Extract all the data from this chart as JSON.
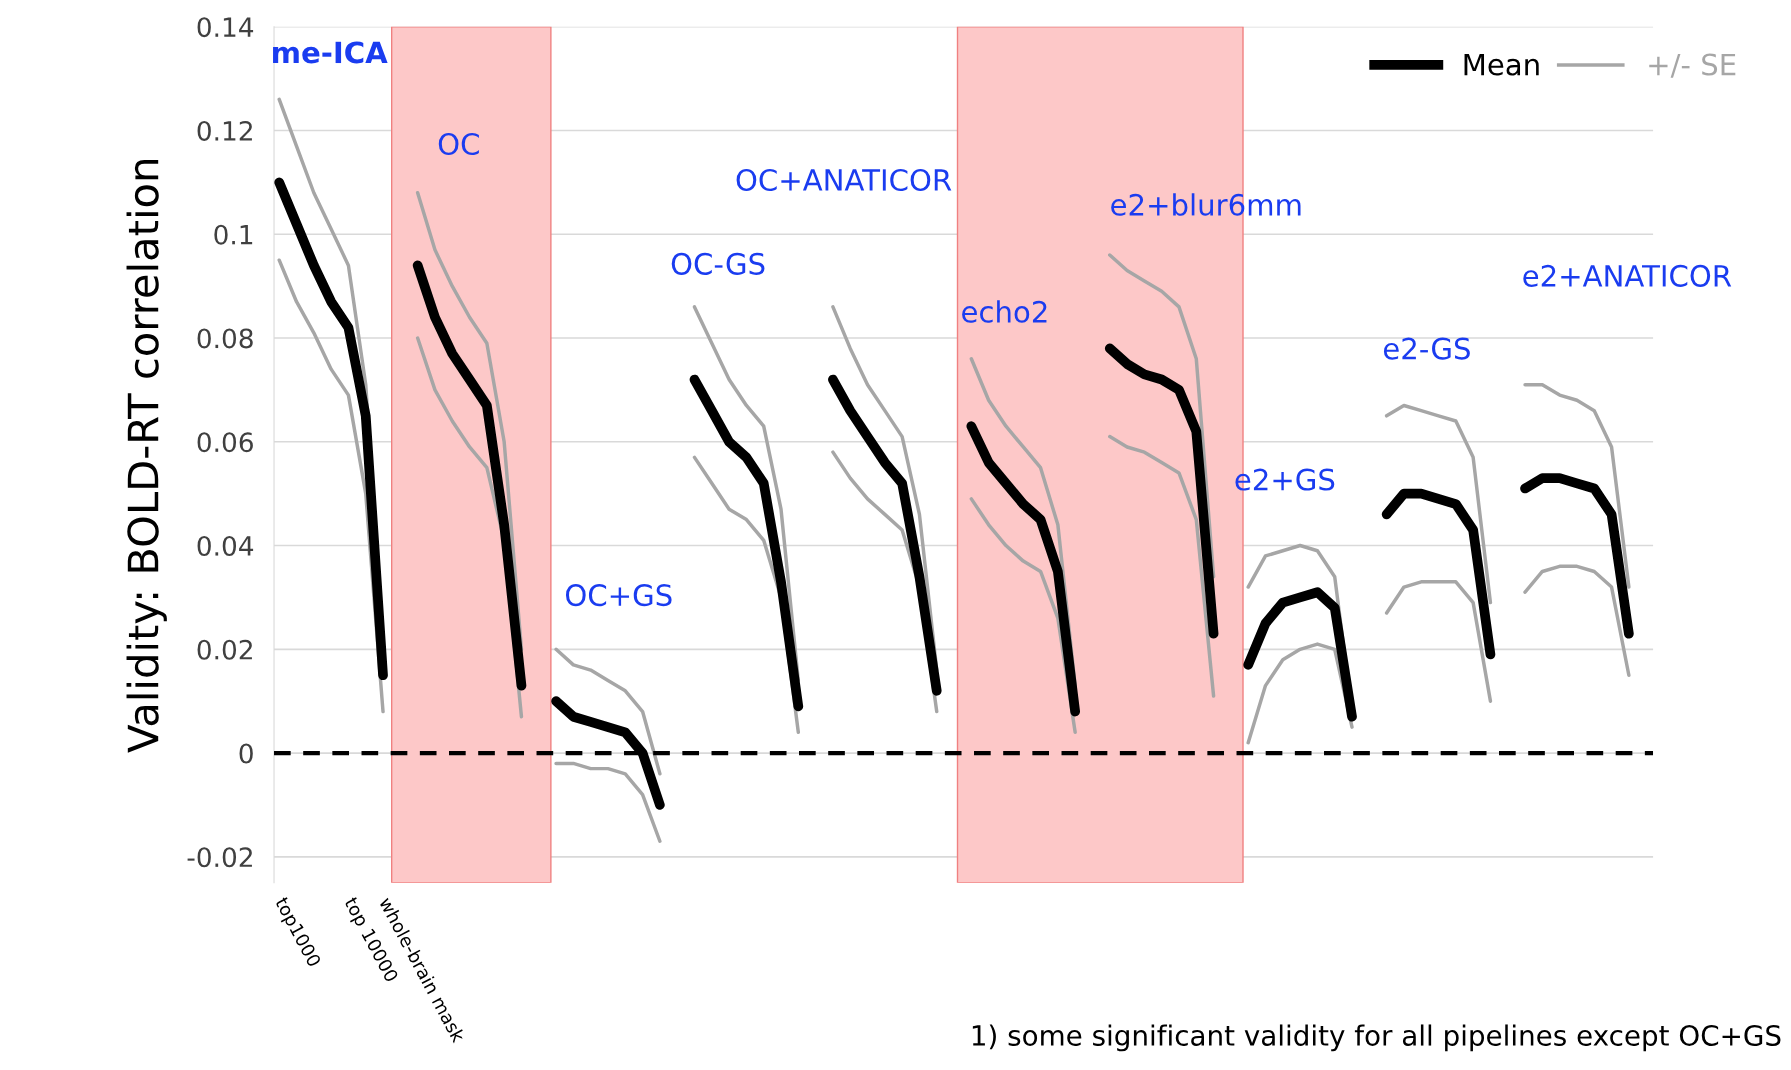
{
  "chart_data": {
    "type": "line",
    "ylabel": "Validity: BOLD-RT correlation",
    "categories": [
      "top1000",
      null,
      null,
      null,
      "top 10000",
      null,
      "whole-brain mask",
      null,
      null,
      null,
      null,
      null,
      null,
      null,
      null,
      null,
      null,
      null,
      null,
      null,
      null,
      null,
      null,
      null,
      null,
      null,
      null,
      null,
      null,
      null,
      null,
      null,
      null,
      null,
      null,
      null,
      null,
      null,
      null,
      null,
      null,
      null,
      null,
      null,
      null,
      null,
      null,
      null,
      null,
      null,
      null,
      null,
      null,
      null,
      null,
      null,
      null,
      null,
      null,
      null,
      null,
      null,
      null,
      null,
      null,
      null,
      null,
      null,
      null,
      null,
      null,
      null,
      null,
      null,
      null,
      null,
      null,
      null,
      null
    ],
    "series": [
      {
        "name": "Mean",
        "color": "#000000",
        "values": [
          0.11,
          0.102,
          0.094,
          0.087,
          0.082,
          0.065,
          0.015,
          null,
          0.094,
          0.084,
          0.077,
          0.072,
          0.067,
          0.044,
          0.013,
          null,
          0.01,
          0.007,
          0.006,
          0.005,
          0.004,
          0.0,
          -0.01,
          null,
          0.072,
          0.066,
          0.06,
          0.057,
          0.052,
          0.033,
          0.009,
          null,
          0.072,
          0.066,
          0.061,
          0.056,
          0.052,
          0.034,
          0.012,
          null,
          0.063,
          0.056,
          0.052,
          0.048,
          0.045,
          0.035,
          0.008,
          null,
          0.078,
          0.075,
          0.073,
          0.072,
          0.07,
          0.062,
          0.023,
          null,
          0.017,
          0.025,
          0.029,
          0.03,
          0.031,
          0.028,
          0.007,
          null,
          0.046,
          0.05,
          0.05,
          0.049,
          0.048,
          0.043,
          0.019,
          null,
          0.051,
          0.053,
          0.053,
          0.052,
          0.051,
          0.046,
          0.023
        ]
      },
      {
        "name": "+/- SE",
        "color": "#a6a6a6",
        "values": [
          0.126,
          0.117,
          0.108,
          0.101,
          0.094,
          0.071,
          0.021,
          null,
          0.108,
          0.097,
          0.09,
          0.084,
          0.079,
          0.06,
          0.02,
          null,
          0.02,
          0.017,
          0.016,
          0.014,
          0.012,
          0.008,
          -0.004,
          null,
          0.086,
          0.079,
          0.072,
          0.067,
          0.063,
          0.047,
          0.014,
          null,
          0.086,
          0.078,
          0.071,
          0.066,
          0.061,
          0.046,
          0.016,
          null,
          0.076,
          0.068,
          0.063,
          0.059,
          0.055,
          0.044,
          0.013,
          null,
          0.096,
          0.093,
          0.091,
          0.089,
          0.086,
          0.076,
          0.034,
          null,
          0.032,
          0.038,
          0.039,
          0.04,
          0.039,
          0.034,
          0.008,
          null,
          0.065,
          0.067,
          0.066,
          0.065,
          0.064,
          0.057,
          0.029,
          null,
          0.071,
          0.071,
          0.069,
          0.068,
          0.066,
          0.059,
          0.032
        ]
      },
      {
        "color": "#a6a6a6",
        "values": [
          0.095,
          0.087,
          0.081,
          0.074,
          0.069,
          0.05,
          0.008,
          null,
          0.08,
          0.07,
          0.064,
          0.059,
          0.055,
          0.041,
          0.007,
          null,
          -0.002,
          -0.002,
          -0.003,
          -0.003,
          -0.004,
          -0.008,
          -0.017,
          null,
          0.057,
          0.052,
          0.047,
          0.045,
          0.041,
          0.03,
          0.004,
          null,
          0.058,
          0.053,
          0.049,
          0.046,
          0.043,
          0.032,
          0.008,
          null,
          0.049,
          0.044,
          0.04,
          0.037,
          0.035,
          0.026,
          0.004,
          null,
          0.061,
          0.059,
          0.058,
          0.056,
          0.054,
          0.045,
          0.011,
          null,
          0.002,
          0.013,
          0.018,
          0.02,
          0.021,
          0.02,
          0.005,
          null,
          0.027,
          0.032,
          0.033,
          0.033,
          0.033,
          0.029,
          0.01,
          null,
          0.031,
          0.035,
          0.036,
          0.036,
          0.035,
          0.032,
          0.015
        ]
      }
    ],
    "ylim": [
      -0.025,
      0.14
    ],
    "yticks": [
      -0.02,
      0,
      0.02,
      0.04,
      0.06,
      0.08,
      0.1,
      0.12,
      0.14
    ],
    "grid": "y",
    "legend": "top right",
    "line_style": "solid",
    "ref_lines": [
      {
        "axis": "y",
        "value": 0,
        "color": "#000000",
        "line_style": "dashed"
      }
    ],
    "annotations": [
      "me-ICA",
      "OC",
      "OC+GS",
      "OC-GS",
      "OC+ANATICOR",
      "echo2",
      "e2+blur6mm",
      "e2+GS",
      "e2-GS",
      "e2+ANATICOR",
      "1) some significant validity for all pipelines except OC+GS"
    ]
  }
}
